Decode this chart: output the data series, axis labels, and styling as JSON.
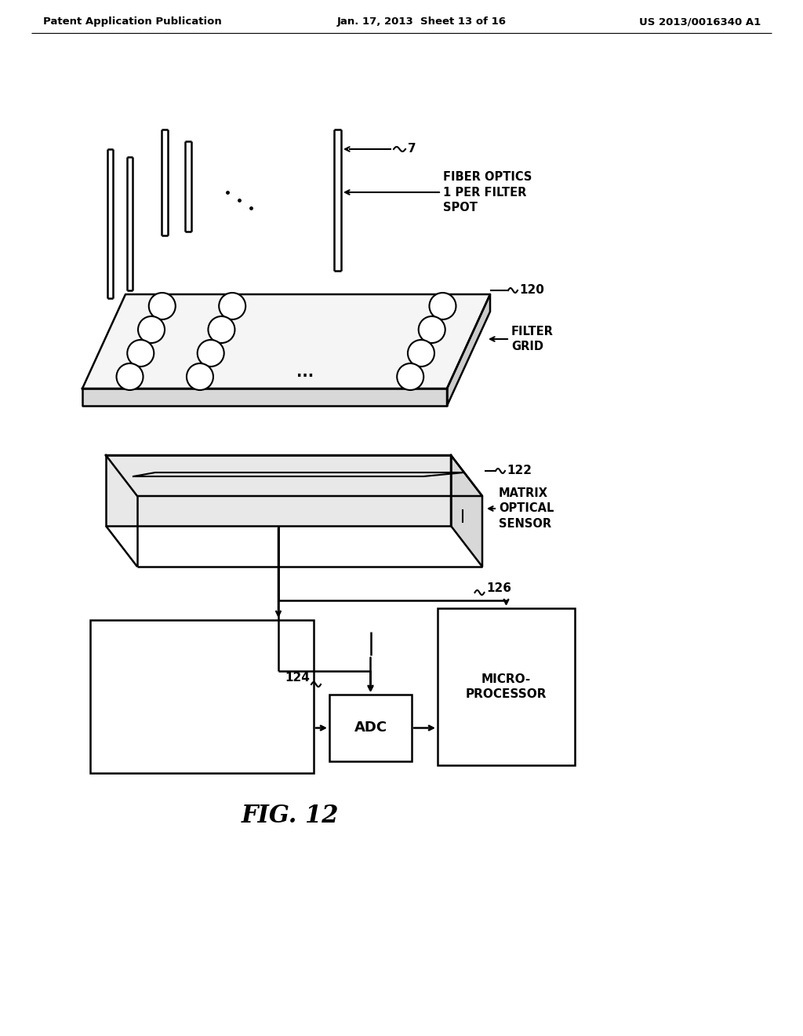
{
  "bg_color": "#ffffff",
  "header_left": "Patent Application Publication",
  "header_mid": "Jan. 17, 2013  Sheet 13 of 16",
  "header_right": "US 2013/0016340 A1",
  "fig_label": "FIG. 12",
  "label_7": "7",
  "label_120": "120",
  "label_122": "122",
  "label_124": "124",
  "label_126": "126",
  "text_fiber": "FIBER OPTICS\n1 PER FILTER\nSPOT",
  "text_filter": "FILTER\nGRID",
  "text_matrix": "MATRIX\nOPTICAL\nSENSOR",
  "text_micro": "MICRO-\nPROCESSOR",
  "text_adc": "ADC"
}
